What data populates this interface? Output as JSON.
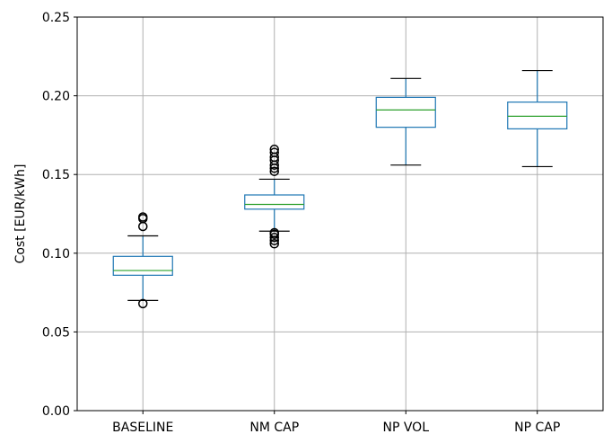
{
  "chart_data": {
    "type": "box",
    "title": "",
    "xlabel": "",
    "ylabel": "Cost [EUR/kWh]",
    "ylim": [
      0.0,
      0.25
    ],
    "yticks": [
      "0.00",
      "0.05",
      "0.10",
      "0.15",
      "0.20",
      "0.25"
    ],
    "grid": true,
    "categories": [
      "BASELINE",
      "NM CAP",
      "NP VOL",
      "NP CAP"
    ],
    "boxes": [
      {
        "name": "BASELINE",
        "whisker_low": 0.07,
        "q1": 0.086,
        "median": 0.089,
        "q3": 0.098,
        "whisker_high": 0.111,
        "outliers": [
          0.068,
          0.117,
          0.122,
          0.123
        ]
      },
      {
        "name": "NM CAP",
        "whisker_low": 0.114,
        "q1": 0.128,
        "median": 0.131,
        "q3": 0.137,
        "whisker_high": 0.147,
        "outliers": [
          0.106,
          0.108,
          0.11,
          0.112,
          0.113,
          0.152,
          0.154,
          0.156,
          0.159,
          0.161,
          0.164,
          0.166
        ]
      },
      {
        "name": "NP VOL",
        "whisker_low": 0.156,
        "q1": 0.18,
        "median": 0.191,
        "q3": 0.199,
        "whisker_high": 0.211,
        "outliers": []
      },
      {
        "name": "NP CAP",
        "whisker_low": 0.155,
        "q1": 0.179,
        "median": 0.187,
        "q3": 0.196,
        "whisker_high": 0.216,
        "outliers": []
      }
    ],
    "colors": {
      "box": "#1f77b4",
      "median": "#2ca02c",
      "whisker_cap": "#000000",
      "grid": "#b0b0b0"
    }
  }
}
